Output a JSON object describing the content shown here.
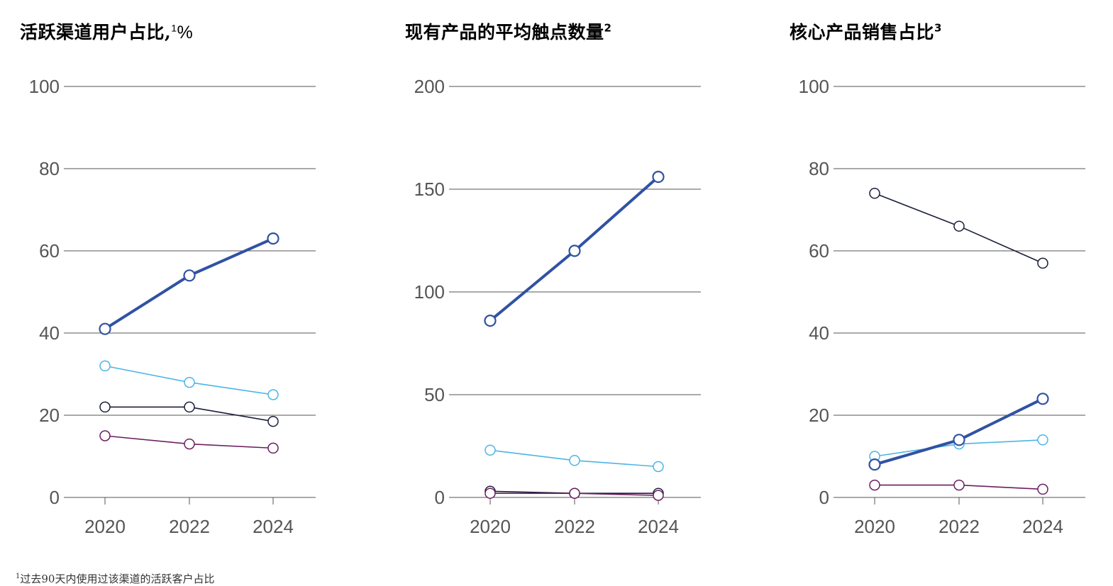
{
  "colors": {
    "series_1": "#3052a2",
    "series_2": "#4cb5e6",
    "series_3": "#1b1e3b",
    "series_4": "#6b1f5e",
    "gridline": "#555555",
    "tick_text": "#555555"
  },
  "footnote": {
    "marker": "1",
    "text": "过去90天内使用过该渠道的活跃客户占比"
  },
  "chart_data": [
    {
      "type": "line",
      "title": "活跃渠道用户占比,",
      "title_sup": "1",
      "title_unit": "%",
      "x": [
        "2020",
        "2022",
        "2024"
      ],
      "ylim": [
        0,
        100
      ],
      "yticks": [
        0,
        20,
        40,
        60,
        80,
        100
      ],
      "grid": true,
      "series": [
        {
          "color": "#3052a2",
          "values": [
            41,
            54,
            63
          ],
          "thick": true
        },
        {
          "color": "#4cb5e6",
          "values": [
            32,
            28,
            25
          ]
        },
        {
          "color": "#1b1e3b",
          "values": [
            22,
            22,
            18.5
          ]
        },
        {
          "color": "#6b1f5e",
          "values": [
            15,
            13,
            12
          ]
        }
      ]
    },
    {
      "type": "line",
      "title": "现有产品的平均触点数量",
      "title_sup": "2",
      "title_unit": "",
      "x": [
        "2020",
        "2022",
        "2024"
      ],
      "ylim": [
        0,
        200
      ],
      "yticks": [
        0,
        50,
        100,
        150,
        200
      ],
      "grid": true,
      "series": [
        {
          "color": "#3052a2",
          "values": [
            86,
            120,
            156
          ],
          "thick": true
        },
        {
          "color": "#4cb5e6",
          "values": [
            23,
            18,
            15
          ]
        },
        {
          "color": "#1b1e3b",
          "values": [
            3,
            2,
            2
          ]
        },
        {
          "color": "#6b1f5e",
          "values": [
            2,
            2,
            1
          ]
        }
      ]
    },
    {
      "type": "line",
      "title": "核心产品销售占比",
      "title_sup": "3",
      "title_unit": "",
      "x": [
        "2020",
        "2022",
        "2024"
      ],
      "ylim": [
        0,
        100
      ],
      "yticks": [
        0,
        20,
        40,
        60,
        80,
        100
      ],
      "grid": true,
      "series": [
        {
          "color": "#1b1e3b",
          "values": [
            74,
            66,
            57
          ]
        },
        {
          "color": "#3052a2",
          "values": [
            8,
            14,
            24
          ],
          "thick": true
        },
        {
          "color": "#4cb5e6",
          "values": [
            10,
            13,
            14
          ]
        },
        {
          "color": "#6b1f5e",
          "values": [
            3,
            3,
            2
          ]
        }
      ]
    }
  ]
}
